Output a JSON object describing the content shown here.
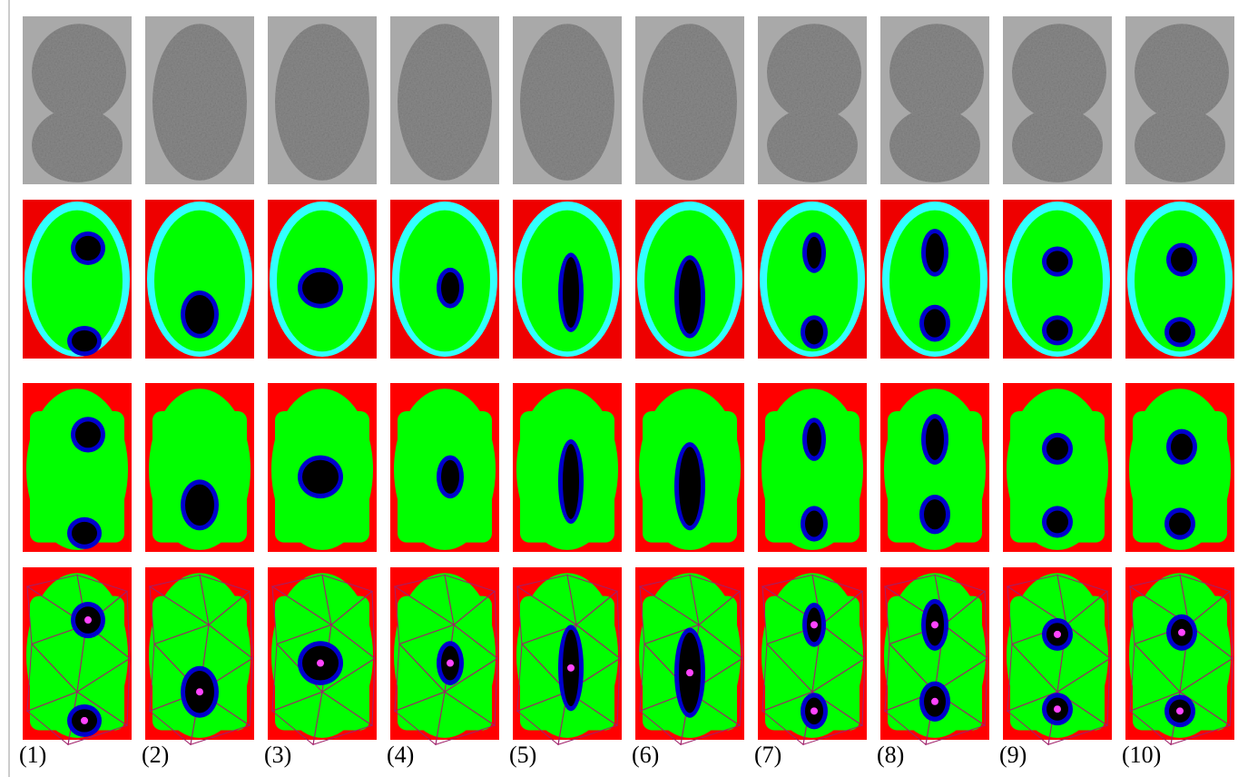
{
  "panel_labels": [
    "(1)",
    "(2)",
    "(3)",
    "(4)",
    "(5)",
    "(6)",
    "(7)",
    "(8)",
    "(9)",
    "(10)"
  ]
}
